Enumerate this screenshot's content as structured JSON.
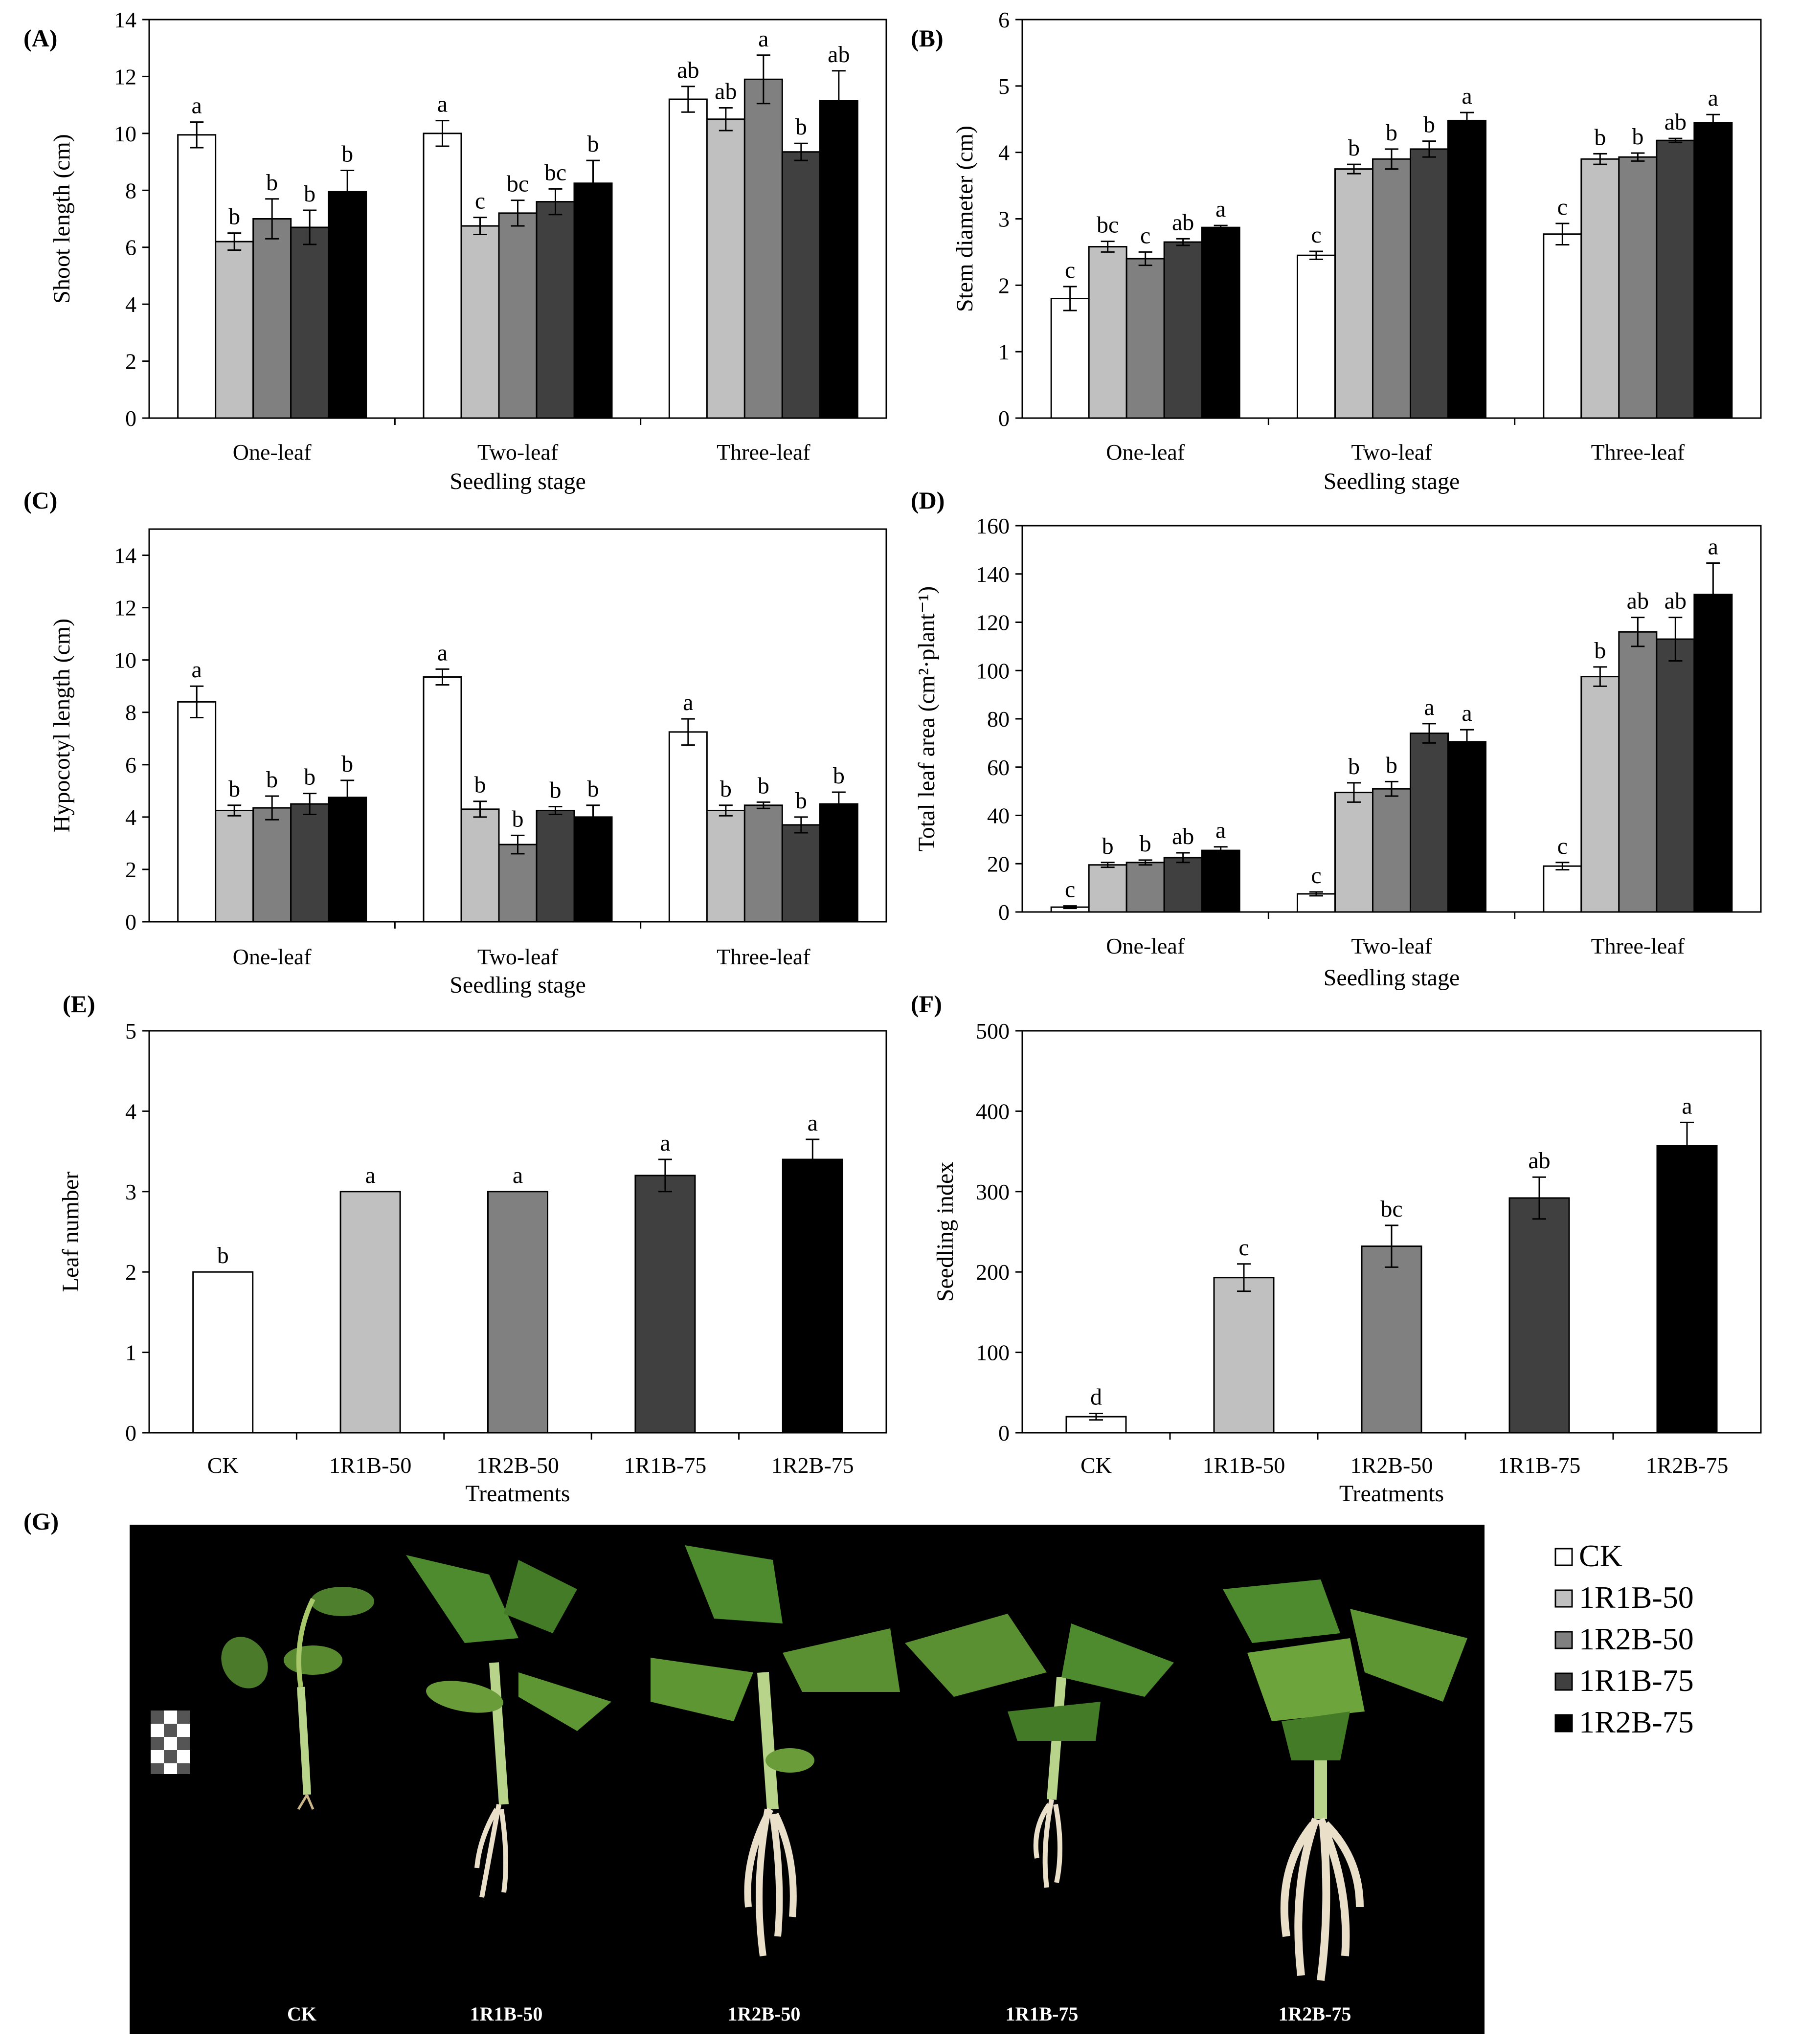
{
  "figure": {
    "panel_g_letter": "(G)",
    "legend": [
      {
        "label": "CK",
        "color": "#ffffff"
      },
      {
        "label": "1R1B-50",
        "color": "#c0c0c0"
      },
      {
        "label": "1R2B-50",
        "color": "#808080"
      },
      {
        "label": "1R1B-75",
        "color": "#404040"
      },
      {
        "label": "1R2B-75",
        "color": "#000000"
      }
    ],
    "photo_labels": [
      "CK",
      "1R1B-50",
      "1R2B-50",
      "1R1B-75",
      "1R2B-75"
    ]
  },
  "chart_data": [
    {
      "panel": "(A)",
      "type": "bar",
      "title": "",
      "ylabel": "Shoot length (cm)",
      "xlabel": "Seedling stage",
      "ylim": [
        0,
        14
      ],
      "yticks": [
        0,
        2,
        4,
        6,
        8,
        10,
        12,
        14
      ],
      "categories": [
        "One-leaf",
        "Two-leaf",
        "Three-leaf"
      ],
      "series": [
        {
          "name": "CK",
          "color": "#ffffff",
          "values": [
            9.95,
            10.0,
            11.2
          ],
          "errors": [
            0.45,
            0.45,
            0.45
          ],
          "letters": [
            "a",
            "a",
            "ab"
          ]
        },
        {
          "name": "1R1B-50",
          "color": "#c0c0c0",
          "values": [
            6.2,
            6.75,
            10.5
          ],
          "errors": [
            0.3,
            0.3,
            0.4
          ],
          "letters": [
            "b",
            "c",
            "ab"
          ]
        },
        {
          "name": "1R2B-50",
          "color": "#808080",
          "values": [
            7.0,
            7.2,
            11.9
          ],
          "errors": [
            0.7,
            0.45,
            0.85
          ],
          "letters": [
            "b",
            "bc",
            "a"
          ]
        },
        {
          "name": "1R1B-75",
          "color": "#404040",
          "values": [
            6.7,
            7.6,
            9.35
          ],
          "errors": [
            0.6,
            0.45,
            0.3
          ],
          "letters": [
            "b",
            "bc",
            "b"
          ]
        },
        {
          "name": "1R2B-75",
          "color": "#000000",
          "values": [
            7.95,
            8.25,
            11.15
          ],
          "errors": [
            0.75,
            0.8,
            1.05
          ],
          "letters": [
            "b",
            "b",
            "ab"
          ]
        }
      ]
    },
    {
      "panel": "(B)",
      "type": "bar",
      "title": "",
      "ylabel": "Stem diameter (cm)",
      "xlabel": "Seedling stage",
      "ylim": [
        0,
        6
      ],
      "yticks": [
        0,
        1,
        2,
        3,
        4,
        5,
        6
      ],
      "categories": [
        "One-leaf",
        "Two-leaf",
        "Three-leaf"
      ],
      "series": [
        {
          "name": "CK",
          "color": "#ffffff",
          "values": [
            1.8,
            2.45,
            2.77
          ],
          "errors": [
            0.18,
            0.06,
            0.16
          ],
          "letters": [
            "c",
            "c",
            "c"
          ]
        },
        {
          "name": "1R1B-50",
          "color": "#c0c0c0",
          "values": [
            2.58,
            3.75,
            3.9
          ],
          "errors": [
            0.08,
            0.07,
            0.08
          ],
          "letters": [
            "bc",
            "b",
            "b"
          ]
        },
        {
          "name": "1R2B-50",
          "color": "#808080",
          "values": [
            2.4,
            3.9,
            3.93
          ],
          "errors": [
            0.1,
            0.15,
            0.06
          ],
          "letters": [
            "c",
            "b",
            "b"
          ]
        },
        {
          "name": "1R1B-75",
          "color": "#404040",
          "values": [
            2.65,
            4.05,
            4.18
          ],
          "errors": [
            0.05,
            0.12,
            0.03
          ],
          "letters": [
            "ab",
            "b",
            "ab"
          ]
        },
        {
          "name": "1R2B-75",
          "color": "#000000",
          "values": [
            2.87,
            4.48,
            4.45
          ],
          "errors": [
            0.03,
            0.12,
            0.12
          ],
          "letters": [
            "a",
            "a",
            "a"
          ]
        }
      ]
    },
    {
      "panel": "(C)",
      "type": "bar",
      "title": "",
      "ylabel": "Hypocotyl length (cm)",
      "xlabel": "Seedling stage",
      "ylim": [
        0,
        15
      ],
      "yticks": [
        0,
        2,
        4,
        6,
        8,
        10,
        12,
        14
      ],
      "categories": [
        "One-leaf",
        "Two-leaf",
        "Three-leaf"
      ],
      "series": [
        {
          "name": "CK",
          "color": "#ffffff",
          "values": [
            8.4,
            9.35,
            7.25
          ],
          "errors": [
            0.6,
            0.3,
            0.5
          ],
          "letters": [
            "a",
            "a",
            "a"
          ]
        },
        {
          "name": "1R1B-50",
          "color": "#c0c0c0",
          "values": [
            4.25,
            4.3,
            4.25
          ],
          "errors": [
            0.2,
            0.3,
            0.2
          ],
          "letters": [
            "b",
            "b",
            "b"
          ]
        },
        {
          "name": "1R2B-50",
          "color": "#808080",
          "values": [
            4.35,
            2.95,
            4.45
          ],
          "errors": [
            0.45,
            0.35,
            0.12
          ],
          "letters": [
            "b",
            "b",
            "b"
          ]
        },
        {
          "name": "1R1B-75",
          "color": "#404040",
          "values": [
            4.5,
            4.25,
            3.7
          ],
          "errors": [
            0.4,
            0.15,
            0.3
          ],
          "letters": [
            "b",
            "b",
            "b"
          ]
        },
        {
          "name": "1R2B-75",
          "color": "#000000",
          "values": [
            4.75,
            4.0,
            4.5
          ],
          "errors": [
            0.65,
            0.45,
            0.45
          ],
          "letters": [
            "b",
            "b",
            "b"
          ]
        }
      ]
    },
    {
      "panel": "(D)",
      "type": "bar",
      "title": "",
      "ylabel": "Total leaf area (cm²·plant⁻¹)",
      "xlabel": "Seedling stage",
      "ylim": [
        0,
        160
      ],
      "yticks": [
        0,
        20,
        40,
        60,
        80,
        100,
        120,
        140,
        160
      ],
      "categories": [
        "One-leaf",
        "Two-leaf",
        "Three-leaf"
      ],
      "series": [
        {
          "name": "CK",
          "color": "#ffffff",
          "values": [
            2.0,
            7.5,
            19.0
          ],
          "errors": [
            0.5,
            0.8,
            1.5
          ],
          "letters": [
            "c",
            "c",
            "c"
          ]
        },
        {
          "name": "1R1B-50",
          "color": "#c0c0c0",
          "values": [
            19.5,
            49.5,
            97.5
          ],
          "errors": [
            1.0,
            4.0,
            4.0
          ],
          "letters": [
            "b",
            "b",
            "b"
          ]
        },
        {
          "name": "1R2B-50",
          "color": "#808080",
          "values": [
            20.5,
            51.0,
            116.0
          ],
          "errors": [
            1.0,
            3.0,
            6.0
          ],
          "letters": [
            "b",
            "b",
            "ab"
          ]
        },
        {
          "name": "1R1B-75",
          "color": "#404040",
          "values": [
            22.5,
            74.0,
            113.0
          ],
          "errors": [
            2.0,
            4.0,
            9.0
          ],
          "letters": [
            "ab",
            "a",
            "ab"
          ]
        },
        {
          "name": "1R2B-75",
          "color": "#000000",
          "values": [
            25.5,
            70.5,
            131.5
          ],
          "errors": [
            1.5,
            5.0,
            13.0
          ],
          "letters": [
            "a",
            "a",
            "a"
          ]
        }
      ]
    },
    {
      "panel": "(E)",
      "type": "bar",
      "title": "",
      "ylabel": "Leaf number",
      "xlabel": "Treatments",
      "ylim": [
        0,
        5
      ],
      "yticks": [
        0,
        1,
        2,
        3,
        4,
        5
      ],
      "categories": [
        "CK",
        "1R1B-50",
        "1R2B-50",
        "1R1B-75",
        "1R2B-75"
      ],
      "colors": [
        "#ffffff",
        "#c0c0c0",
        "#808080",
        "#404040",
        "#000000"
      ],
      "values": [
        2.0,
        3.0,
        3.0,
        3.2,
        3.4
      ],
      "errors": [
        0,
        0,
        0,
        0.2,
        0.25
      ],
      "letters": [
        "b",
        "a",
        "a",
        "a",
        "a"
      ]
    },
    {
      "panel": "(F)",
      "type": "bar",
      "title": "",
      "ylabel": "Seedling index",
      "xlabel": "Treatments",
      "ylim": [
        0,
        500
      ],
      "yticks": [
        0,
        100,
        200,
        300,
        400,
        500
      ],
      "categories": [
        "CK",
        "1R1B-50",
        "1R2B-50",
        "1R1B-75",
        "1R2B-75"
      ],
      "colors": [
        "#ffffff",
        "#c0c0c0",
        "#808080",
        "#404040",
        "#000000"
      ],
      "values": [
        20,
        193,
        232,
        292,
        357
      ],
      "errors": [
        4,
        17,
        26,
        26,
        29
      ],
      "letters": [
        "d",
        "c",
        "bc",
        "ab",
        "a"
      ]
    }
  ]
}
